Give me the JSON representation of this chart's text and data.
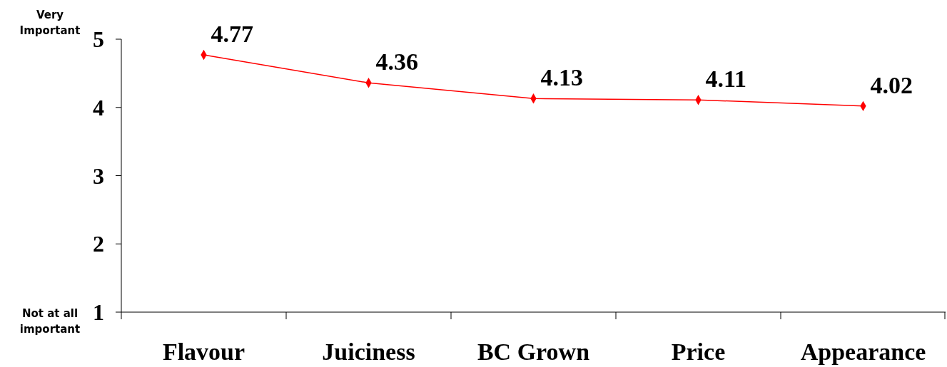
{
  "chart_data": {
    "type": "line",
    "categories": [
      "Flavour",
      "Juiciness",
      "BC Grown",
      "Price",
      "Appearance"
    ],
    "series": [
      {
        "color": "#ff0000",
        "values": [
          4.77,
          4.36,
          4.13,
          4.11,
          4.02
        ]
      }
    ],
    "ylim": [
      1,
      5
    ],
    "yticks": [
      1,
      2,
      3,
      4,
      5
    ],
    "data_labels": true,
    "marker": "diamond",
    "annotations": [
      "Very Important",
      "Not at all important"
    ]
  }
}
